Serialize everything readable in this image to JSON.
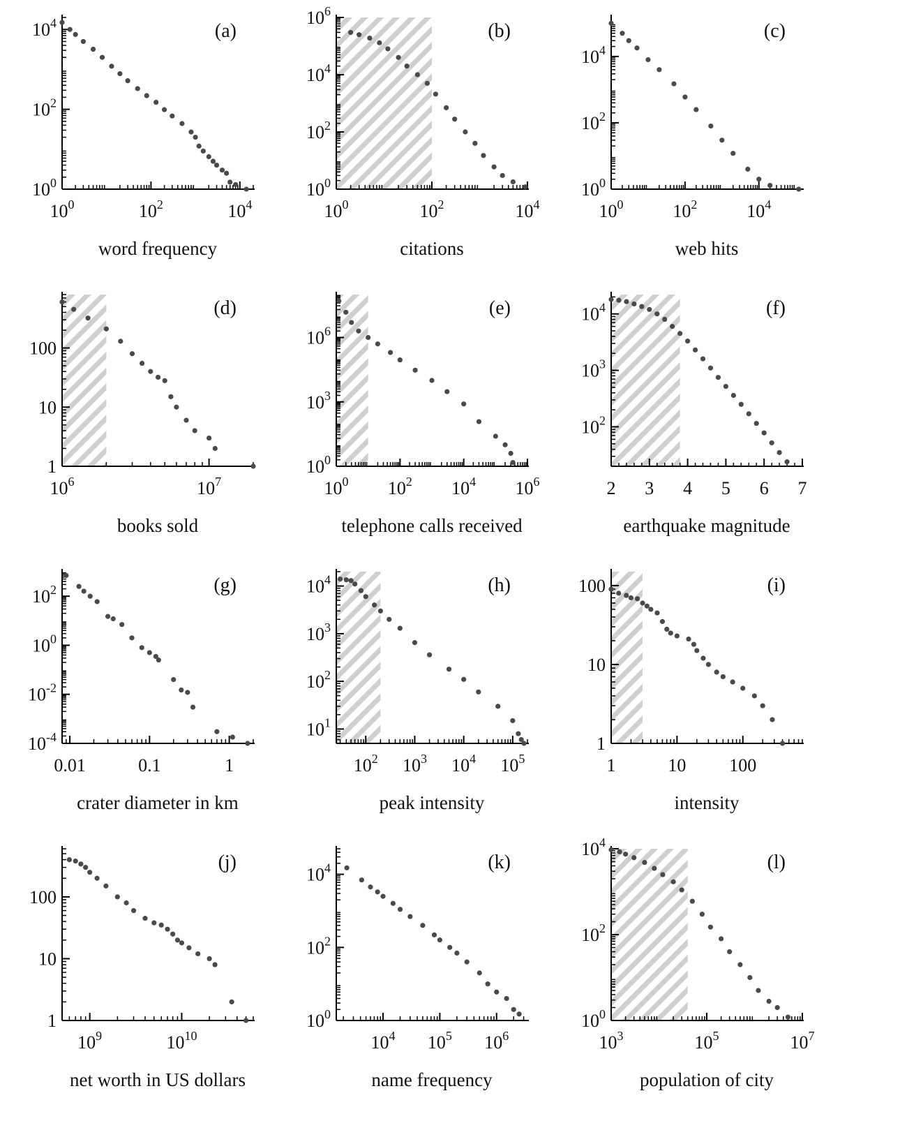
{
  "figure": {
    "marker_color": "#4a4a4a",
    "hatch_color": "#bdbdbd",
    "axis_color": "#000000"
  },
  "chart_data": [
    {
      "id": "a",
      "panel_label": "(a)",
      "type": "scatter",
      "xlabel": "word frequency",
      "ylabel": "",
      "xscale": "log",
      "yscale": "log",
      "xlim": [
        1,
        20000
      ],
      "ylim": [
        1,
        20000
      ],
      "xticks": [
        1,
        100,
        10000
      ],
      "xtick_labels": [
        [
          "10",
          "0"
        ],
        [
          "10",
          "2"
        ],
        [
          "10",
          "4"
        ]
      ],
      "yticks": [
        1,
        100,
        10000
      ],
      "ytick_labels": [
        [
          "10",
          "0"
        ],
        [
          "10",
          "2"
        ],
        [
          "10",
          "4"
        ]
      ],
      "shaded": null,
      "x": [
        1,
        1.5,
        2,
        3,
        5,
        8,
        13,
        20,
        30,
        50,
        80,
        130,
        200,
        300,
        500,
        800,
        1000,
        1200,
        1500,
        2000,
        2500,
        3000,
        4000,
        5000,
        6000,
        8000,
        14000
      ],
      "y": [
        15000,
        10000,
        7500,
        5000,
        3200,
        2000,
        1200,
        780,
        520,
        330,
        220,
        150,
        98,
        68,
        44,
        27,
        20,
        12,
        9,
        6.5,
        5,
        4,
        3,
        2.5,
        1.5,
        1.3,
        1
      ]
    },
    {
      "id": "b",
      "panel_label": "(b)",
      "type": "scatter",
      "xlabel": "citations",
      "ylabel": "",
      "xscale": "log",
      "yscale": "log",
      "xlim": [
        1,
        10000
      ],
      "ylim": [
        1,
        1000000
      ],
      "xticks": [
        1,
        100,
        10000
      ],
      "xtick_labels": [
        [
          "10",
          "0"
        ],
        [
          "10",
          "2"
        ],
        [
          "10",
          "4"
        ]
      ],
      "yticks": [
        1,
        100,
        10000,
        1000000
      ],
      "ytick_labels": [
        [
          "10",
          "0"
        ],
        [
          "10",
          "2"
        ],
        [
          "10",
          "4"
        ],
        [
          "10",
          "6"
        ]
      ],
      "shaded": [
        1,
        100
      ],
      "x": [
        2,
        3,
        5,
        8,
        12,
        20,
        30,
        50,
        80,
        120,
        200,
        300,
        500,
        800,
        1200,
        2000,
        3000,
        5000,
        9000
      ],
      "y": [
        300000,
        250000,
        190000,
        130000,
        80000,
        40000,
        20000,
        10000,
        5000,
        2100,
        700,
        280,
        100,
        40,
        15,
        6,
        3,
        1.8,
        1.2
      ]
    },
    {
      "id": "c",
      "panel_label": "(c)",
      "type": "scatter",
      "xlabel": "web hits",
      "ylabel": "",
      "xscale": "log",
      "yscale": "log",
      "xlim": [
        1,
        150000
      ],
      "ylim": [
        1,
        150000
      ],
      "xticks": [
        1,
        100,
        10000
      ],
      "xtick_labels": [
        [
          "10",
          "0"
        ],
        [
          "10",
          "2"
        ],
        [
          "10",
          "4"
        ]
      ],
      "yticks": [
        1,
        100,
        10000
      ],
      "ytick_labels": [
        [
          "10",
          "0"
        ],
        [
          "10",
          "2"
        ],
        [
          "10",
          "4"
        ]
      ],
      "shaded": null,
      "x": [
        1,
        2,
        3,
        5,
        10,
        20,
        50,
        100,
        200,
        500,
        1000,
        2000,
        5000,
        10000,
        20000,
        120000
      ],
      "y": [
        100000,
        50000,
        30000,
        18000,
        8000,
        4000,
        1500,
        600,
        250,
        80,
        30,
        12,
        4,
        2,
        1.3,
        1
      ]
    },
    {
      "id": "d",
      "panel_label": "(d)",
      "type": "scatter",
      "xlabel": "books sold",
      "ylabel": "",
      "xscale": "log",
      "yscale": "log",
      "xlim": [
        1000000,
        20000000
      ],
      "ylim": [
        1,
        800
      ],
      "xticks": [
        1000000,
        10000000
      ],
      "xtick_labels": [
        [
          "10",
          "6"
        ],
        [
          "10",
          "7"
        ]
      ],
      "yticks": [
        1,
        10,
        100
      ],
      "ytick_labels": [
        [
          "1"
        ],
        [
          "10"
        ],
        [
          "100"
        ]
      ],
      "shaded": [
        1000000,
        2000000
      ],
      "x": [
        1000000,
        1200000,
        1500000,
        2000000,
        2500000,
        3000000,
        3500000,
        4000000,
        4500000,
        5000000,
        5500000,
        6000000,
        7000000,
        8000000,
        10000000,
        11000000,
        20000000
      ],
      "y": [
        600,
        450,
        320,
        210,
        130,
        80,
        55,
        40,
        32,
        28,
        15,
        10,
        6,
        4,
        3,
        2,
        1
      ]
    },
    {
      "id": "e",
      "panel_label": "(e)",
      "type": "scatter",
      "xlabel": "telephone calls received",
      "ylabel": "",
      "xscale": "log",
      "yscale": "log",
      "xlim": [
        1,
        1000000
      ],
      "ylim": [
        1,
        100000000
      ],
      "xticks": [
        1,
        100,
        10000,
        1000000
      ],
      "xtick_labels": [
        [
          "10",
          "0"
        ],
        [
          "10",
          "2"
        ],
        [
          "10",
          "4"
        ],
        [
          "10",
          "6"
        ]
      ],
      "yticks": [
        1,
        1000,
        1000000
      ],
      "ytick_labels": [
        [
          "10",
          "0"
        ],
        [
          "10",
          "3"
        ],
        [
          "10",
          "6"
        ]
      ],
      "shaded": [
        1,
        10
      ],
      "x": [
        1.2,
        2,
        3,
        5,
        10,
        20,
        50,
        100,
        300,
        1000,
        3000,
        10000,
        30000,
        100000,
        200000,
        300000,
        350000
      ],
      "y": [
        50000000,
        15000000,
        5000000,
        2000000,
        1000000,
        500000,
        200000,
        90000,
        30000,
        10000,
        3000,
        800,
        120,
        25,
        10,
        4,
        1.5
      ]
    },
    {
      "id": "f",
      "panel_label": "(f)",
      "type": "scatter",
      "xlabel": "earthquake magnitude",
      "ylabel": "",
      "xscale": "linear",
      "yscale": "log",
      "xlim": [
        2,
        7
      ],
      "ylim": [
        20,
        22000
      ],
      "xticks": [
        2,
        3,
        4,
        5,
        6,
        7
      ],
      "xtick_labels": [
        [
          "2"
        ],
        [
          "3"
        ],
        [
          "4"
        ],
        [
          "5"
        ],
        [
          "6"
        ],
        [
          "7"
        ]
      ],
      "yticks": [
        100,
        1000,
        10000
      ],
      "ytick_labels": [
        [
          "10",
          "2"
        ],
        [
          "10",
          "3"
        ],
        [
          "10",
          "4"
        ]
      ],
      "shaded": [
        2,
        3.8
      ],
      "x": [
        2,
        2.2,
        2.4,
        2.6,
        2.8,
        3,
        3.2,
        3.4,
        3.6,
        3.8,
        4,
        4.2,
        4.4,
        4.6,
        4.8,
        5,
        5.2,
        5.4,
        5.6,
        5.8,
        6,
        6.2,
        6.4,
        6.6
      ],
      "y": [
        18000,
        17500,
        16500,
        15000,
        13500,
        12000,
        10000,
        8000,
        6000,
        4500,
        3300,
        2300,
        1600,
        1100,
        750,
        520,
        360,
        250,
        170,
        115,
        78,
        52,
        35,
        24
      ]
    },
    {
      "id": "g",
      "panel_label": "(g)",
      "type": "scatter",
      "xlabel": "crater diameter in km",
      "ylabel": "",
      "xscale": "log",
      "yscale": "log",
      "xlim": [
        0.008,
        2
      ],
      "ylim": [
        0.0001,
        1000
      ],
      "xticks": [
        0.01,
        0.1,
        1
      ],
      "xtick_labels": [
        [
          "0.01"
        ],
        [
          "0.1"
        ],
        [
          "1"
        ]
      ],
      "yticks": [
        0.0001,
        0.01,
        1,
        100
      ],
      "ytick_labels": [
        [
          "10",
          "-4"
        ],
        [
          "10",
          "-2"
        ],
        [
          "10",
          "0"
        ],
        [
          "10",
          "2"
        ]
      ],
      "shaded": null,
      "x": [
        0.009,
        0.013,
        0.015,
        0.018,
        0.022,
        0.03,
        0.035,
        0.045,
        0.06,
        0.08,
        0.1,
        0.12,
        0.13,
        0.2,
        0.25,
        0.3,
        0.35,
        0.7,
        1.1,
        1.7
      ],
      "y": [
        700,
        250,
        160,
        100,
        60,
        15,
        12,
        7,
        2,
        0.8,
        0.5,
        0.35,
        0.25,
        0.04,
        0.015,
        0.012,
        0.003,
        0.0003,
        0.00018,
        0.0001
      ]
    },
    {
      "id": "h",
      "panel_label": "(h)",
      "type": "scatter",
      "xlabel": "peak intensity",
      "ylabel": "",
      "xscale": "log",
      "yscale": "log",
      "xlim": [
        25,
        200000
      ],
      "ylim": [
        5,
        20000
      ],
      "xticks": [
        100,
        1000,
        10000,
        100000
      ],
      "xtick_labels": [
        [
          "10",
          "2"
        ],
        [
          "10",
          "3"
        ],
        [
          "10",
          "4"
        ],
        [
          "10",
          "5"
        ]
      ],
      "yticks": [
        10,
        100,
        1000,
        10000
      ],
      "ytick_labels": [
        [
          "10",
          "1"
        ],
        [
          "10",
          "2"
        ],
        [
          "10",
          "3"
        ],
        [
          "10",
          "4"
        ]
      ],
      "shaded": [
        25,
        200
      ],
      "x": [
        30,
        40,
        50,
        60,
        80,
        100,
        150,
        200,
        300,
        500,
        1000,
        2000,
        5000,
        10000,
        20000,
        50000,
        100000,
        130000,
        150000,
        170000
      ],
      "y": [
        14000,
        13500,
        13000,
        11000,
        8000,
        6000,
        4000,
        3000,
        2000,
        1300,
        650,
        360,
        180,
        110,
        60,
        30,
        15,
        8,
        6,
        5
      ]
    },
    {
      "id": "i",
      "panel_label": "(i)",
      "type": "scatter",
      "xlabel": "intensity",
      "ylabel": "",
      "xscale": "log",
      "yscale": "log",
      "xlim": [
        1,
        800
      ],
      "ylim": [
        1,
        150
      ],
      "xticks": [
        1,
        10,
        100
      ],
      "xtick_labels": [
        [
          "1"
        ],
        [
          "10"
        ],
        [
          "100"
        ]
      ],
      "yticks": [
        1,
        10,
        100
      ],
      "ytick_labels": [
        [
          "1"
        ],
        [
          "10"
        ],
        [
          "100"
        ]
      ],
      "shaded": [
        1,
        3
      ],
      "x": [
        1,
        1.3,
        1.7,
        2,
        2.5,
        3,
        3.5,
        4,
        5,
        6,
        7,
        8,
        10,
        15,
        18,
        20,
        25,
        30,
        40,
        50,
        70,
        100,
        150,
        200,
        280,
        400
      ],
      "y": [
        90,
        80,
        75,
        70,
        68,
        60,
        55,
        50,
        45,
        35,
        28,
        25,
        23,
        21,
        18,
        15,
        12,
        10,
        8,
        7,
        6,
        5,
        4,
        3,
        2,
        1
      ]
    },
    {
      "id": "j",
      "panel_label": "(j)",
      "type": "scatter",
      "xlabel": "net worth in US dollars",
      "ylabel": "",
      "xscale": "log",
      "yscale": "log",
      "xlim": [
        500000000,
        60000000000
      ],
      "ylim": [
        1,
        600
      ],
      "xticks": [
        1000000000,
        10000000000
      ],
      "xtick_labels": [
        [
          "10",
          "9"
        ],
        [
          "10",
          "10"
        ]
      ],
      "yticks": [
        1,
        10,
        100
      ],
      "ytick_labels": [
        [
          "1"
        ],
        [
          "10"
        ],
        [
          "100"
        ]
      ],
      "shaded": null,
      "x": [
        600000000,
        700000000,
        800000000,
        900000000,
        1000000000,
        1200000000,
        1500000000,
        2000000000,
        2500000000,
        3000000000,
        4000000000,
        5000000000,
        6000000000,
        7000000000,
        8000000000,
        9000000000,
        10000000000,
        12000000000,
        15000000000,
        20000000000,
        23000000000,
        35000000000,
        50000000000
      ],
      "y": [
        400,
        380,
        340,
        300,
        250,
        200,
        150,
        100,
        80,
        60,
        45,
        38,
        35,
        30,
        25,
        20,
        18,
        15,
        12,
        10,
        8,
        2,
        1
      ]
    },
    {
      "id": "k",
      "panel_label": "(k)",
      "type": "scatter",
      "xlabel": "name frequency",
      "ylabel": "",
      "xscale": "log",
      "yscale": "log",
      "xlim": [
        1500,
        3500000
      ],
      "ylim": [
        1,
        50000
      ],
      "xticks": [
        10000,
        100000,
        1000000
      ],
      "xtick_labels": [
        [
          "10",
          "4"
        ],
        [
          "10",
          "5"
        ],
        [
          "10",
          "6"
        ]
      ],
      "yticks": [
        1,
        100,
        10000
      ],
      "ytick_labels": [
        [
          "10",
          "0"
        ],
        [
          "10",
          "2"
        ],
        [
          "10",
          "4"
        ]
      ],
      "shaded": null,
      "x": [
        2300,
        4200,
        6000,
        8000,
        10000,
        15000,
        20000,
        30000,
        50000,
        80000,
        100000,
        150000,
        200000,
        300000,
        500000,
        700000,
        1000000,
        1500000,
        2000000,
        2500000
      ],
      "y": [
        15000,
        7000,
        4500,
        3300,
        2500,
        1600,
        1100,
        700,
        400,
        220,
        160,
        100,
        70,
        40,
        20,
        10,
        6,
        4,
        2,
        1.5
      ]
    },
    {
      "id": "l",
      "panel_label": "(l)",
      "type": "scatter",
      "xlabel": "population of city",
      "ylabel": "",
      "xscale": "log",
      "yscale": "log",
      "xlim": [
        1000,
        10000000
      ],
      "ylim": [
        1,
        10000
      ],
      "xticks": [
        1000,
        100000,
        10000000
      ],
      "xtick_labels": [
        [
          "10",
          "3"
        ],
        [
          "10",
          "5"
        ],
        [
          "10",
          "7"
        ]
      ],
      "yticks": [
        1,
        100,
        10000
      ],
      "ytick_labels": [
        [
          "10",
          "0"
        ],
        [
          "10",
          "2"
        ],
        [
          "10",
          "4"
        ]
      ],
      "shaded": [
        1000,
        40000
      ],
      "x": [
        1000,
        1500,
        2000,
        3000,
        5000,
        8000,
        12000,
        20000,
        30000,
        50000,
        80000,
        120000,
        200000,
        300000,
        500000,
        800000,
        1200000,
        2000000,
        3000000,
        5000000
      ],
      "y": [
        9500,
        8500,
        7500,
        6200,
        4800,
        3500,
        2500,
        1700,
        1100,
        600,
        300,
        150,
        80,
        40,
        20,
        10,
        5,
        2.8,
        2,
        1.2
      ]
    }
  ]
}
